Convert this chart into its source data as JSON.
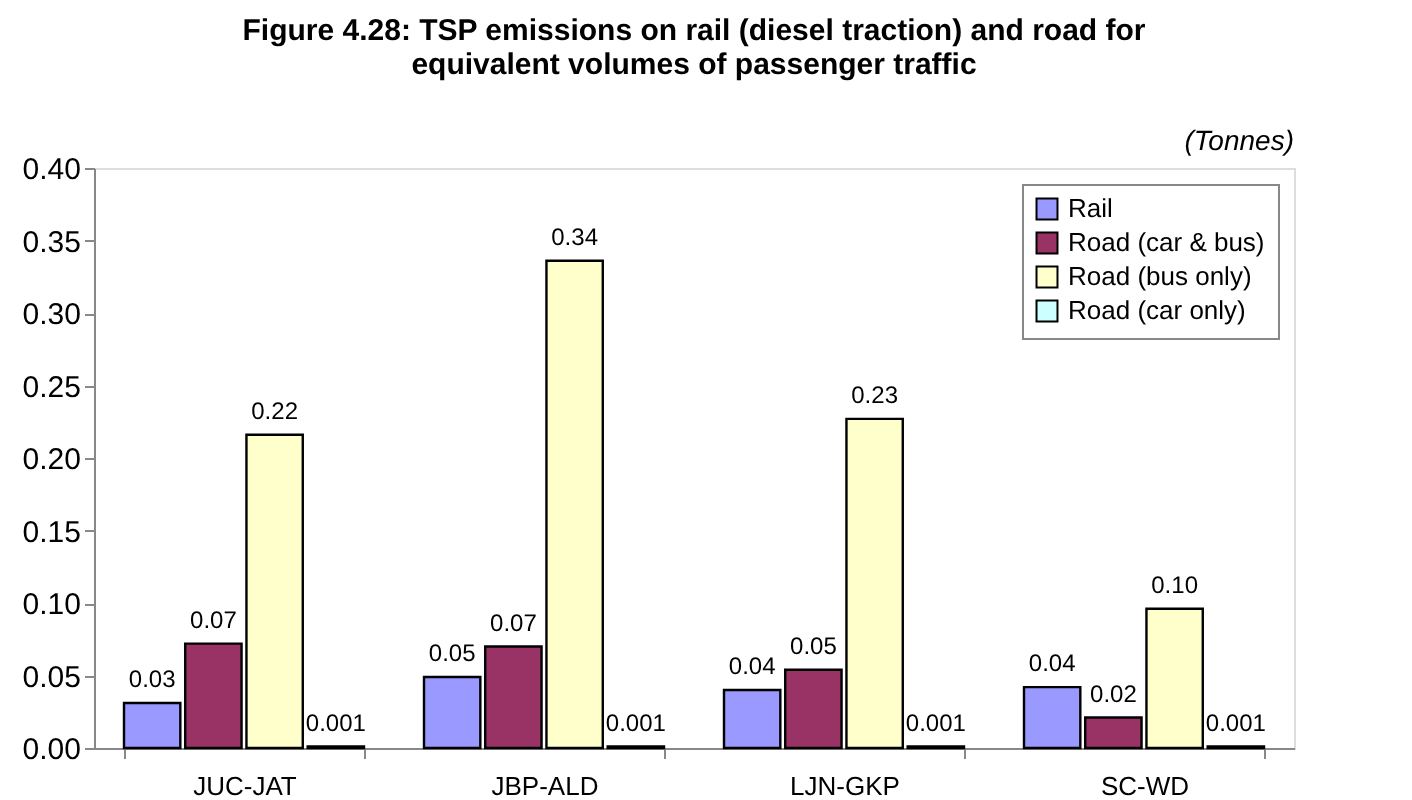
{
  "chart_data": {
    "type": "bar",
    "title": "Figure 4.28: TSP emissions on rail (diesel traction) and road for equivalent volumes of passenger traffic",
    "annotations": [
      "(Tonnes)"
    ],
    "categories": [
      "JUC-JAT",
      "JBP-ALD",
      "LJN-GKP",
      "SC-WD"
    ],
    "series": [
      {
        "name": "Rail",
        "color": "#9999ff",
        "values": [
          0.031,
          0.049,
          0.04,
          0.042
        ],
        "value_labels": [
          "0.03",
          "0.05",
          "0.04",
          "0.04"
        ]
      },
      {
        "name": "Road (car & bus)",
        "color": "#993366",
        "values": [
          0.072,
          0.07,
          0.054,
          0.021
        ],
        "value_labels": [
          "0.07",
          "0.07",
          "0.05",
          "0.02"
        ]
      },
      {
        "name": "Road (bus only)",
        "color": "#ffffcc",
        "values": [
          0.216,
          0.336,
          0.227,
          0.096
        ],
        "value_labels": [
          "0.22",
          "0.34",
          "0.23",
          "0.10"
        ]
      },
      {
        "name": "Road (car only)",
        "color": "#ccffff",
        "values": [
          0.001,
          0.001,
          0.001,
          0.001
        ],
        "value_labels": [
          "0.001",
          "0.001",
          "0.001",
          "0.001"
        ]
      }
    ],
    "ylim": [
      0,
      0.4
    ],
    "yticks": [
      {
        "value": 0,
        "label": "0.00"
      },
      {
        "value": 0.05,
        "label": "0.05"
      },
      {
        "value": 0.1,
        "label": "0.10"
      },
      {
        "value": 0.15,
        "label": "0.15"
      },
      {
        "value": 0.2,
        "label": "0.20"
      },
      {
        "value": 0.25,
        "label": "0.25"
      },
      {
        "value": 0.3,
        "label": "0.30"
      },
      {
        "value": 0.35,
        "label": "0.35"
      },
      {
        "value": 0.4,
        "label": "0.40"
      }
    ],
    "legend": "top right",
    "grid": false
  }
}
